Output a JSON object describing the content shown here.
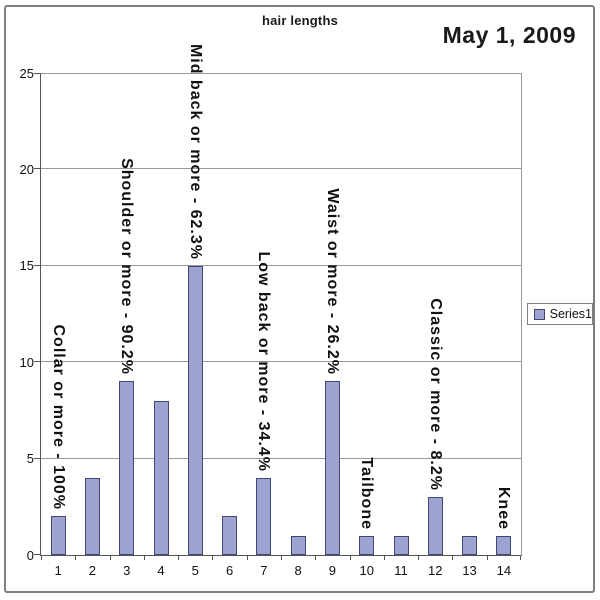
{
  "date_label": "May 1, 2009",
  "chart_data": {
    "type": "bar",
    "title": "hair lengths",
    "categories": [
      "1",
      "2",
      "3",
      "4",
      "5",
      "6",
      "7",
      "8",
      "9",
      "10",
      "11",
      "12",
      "13",
      "14"
    ],
    "series": [
      {
        "name": "Series1",
        "values": [
          2,
          4,
          9,
          8,
          15,
          2,
          4,
          1,
          9,
          1,
          1,
          3,
          1,
          1
        ]
      }
    ],
    "xlabel": "",
    "ylabel": "",
    "ylim": [
      0,
      25
    ],
    "yticks": [
      0,
      5,
      10,
      15,
      20,
      25
    ],
    "grid": true,
    "legend_position": "right",
    "annotations": [
      {
        "category": "1",
        "text": "Collar or more - 100%"
      },
      {
        "category": "3",
        "text": "Shoulder or more - 90.2%"
      },
      {
        "category": "5",
        "text": "Mid back or more - 62.3%"
      },
      {
        "category": "7",
        "text": "Low back or more - 34.4%"
      },
      {
        "category": "9",
        "text": "Waist or more - 26.2%"
      },
      {
        "category": "10",
        "text": "Tailbone"
      },
      {
        "category": "12",
        "text": "Classic or more - 8.2%"
      },
      {
        "category": "14",
        "text": "Knee"
      }
    ],
    "colors": {
      "bar_fill": "#9CA3D1",
      "bar_border": "#424876",
      "gridline": "#999999",
      "axis": "#555555",
      "frame": "#7F7F7F"
    }
  }
}
